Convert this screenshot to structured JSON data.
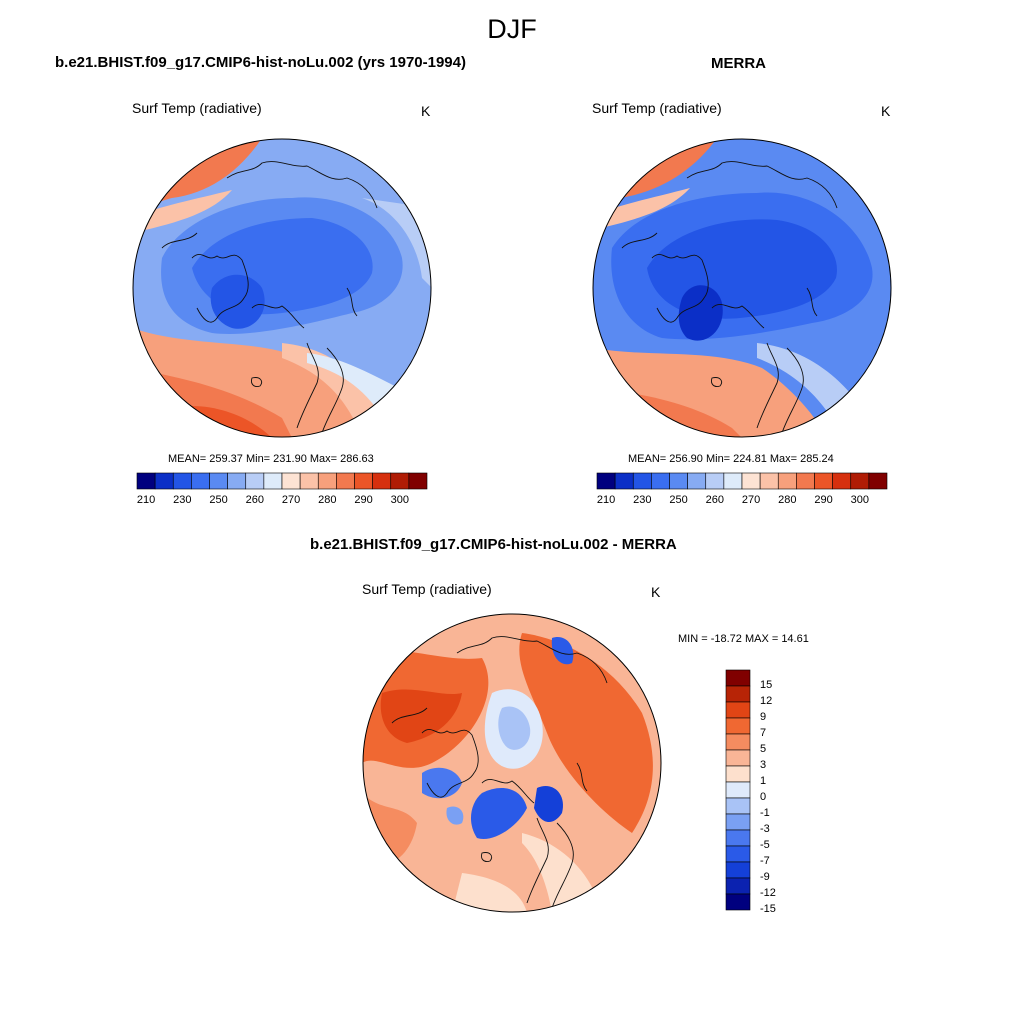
{
  "page": {
    "title": "DJF"
  },
  "colors": {
    "abs_scale": [
      "#00007f",
      "#0b2fc7",
      "#2355e6",
      "#3a6ef0",
      "#5a8af2",
      "#87abf3",
      "#b8cdf6",
      "#deebfa",
      "#fde3d4",
      "#fbc2a8",
      "#f7a07c",
      "#f2794f",
      "#ec5527",
      "#d6300e",
      "#b01c05",
      "#800000"
    ],
    "diff_scale": [
      "#00007f",
      "#0b22b0",
      "#1440d8",
      "#2a5ae8",
      "#4a78ef",
      "#7aa0f3",
      "#a9c3f6",
      "#dfeafb",
      "#fde0cd",
      "#f9b596",
      "#f58c60",
      "#f06832",
      "#e14515",
      "#b72406",
      "#800000"
    ],
    "coast": "#111111"
  },
  "panels": {
    "model": {
      "title": "b.e21.BHIST.f09_g17.CMIP6-hist-noLu.002 (yrs 1970-1994)",
      "variable": "Surf Temp (radiative)",
      "units": "K",
      "stats": "MEAN= 259.37  Min= 231.90  Max= 286.63",
      "colorbar_ticks": [
        "210",
        "230",
        "250",
        "260",
        "270",
        "280",
        "290",
        "300"
      ]
    },
    "obs": {
      "title": "MERRA",
      "variable": "Surf Temp (radiative)",
      "units": "K",
      "stats": "MEAN= 256.90  Min= 224.81  Max= 285.24",
      "colorbar_ticks": [
        "210",
        "230",
        "250",
        "260",
        "270",
        "280",
        "290",
        "300"
      ]
    },
    "diff": {
      "title": "b.e21.BHIST.f09_g17.CMIP6-hist-noLu.002 - MERRA",
      "variable": "Surf Temp (radiative)",
      "units": "K",
      "stats": "MIN = -18.72 MAX =  14.61",
      "colorbar_ticks": [
        "15",
        "12",
        "9",
        "7",
        "5",
        "3",
        "1",
        "0",
        "-1",
        "-3",
        "-5",
        "-7",
        "-9",
        "-12",
        "-15"
      ]
    }
  }
}
